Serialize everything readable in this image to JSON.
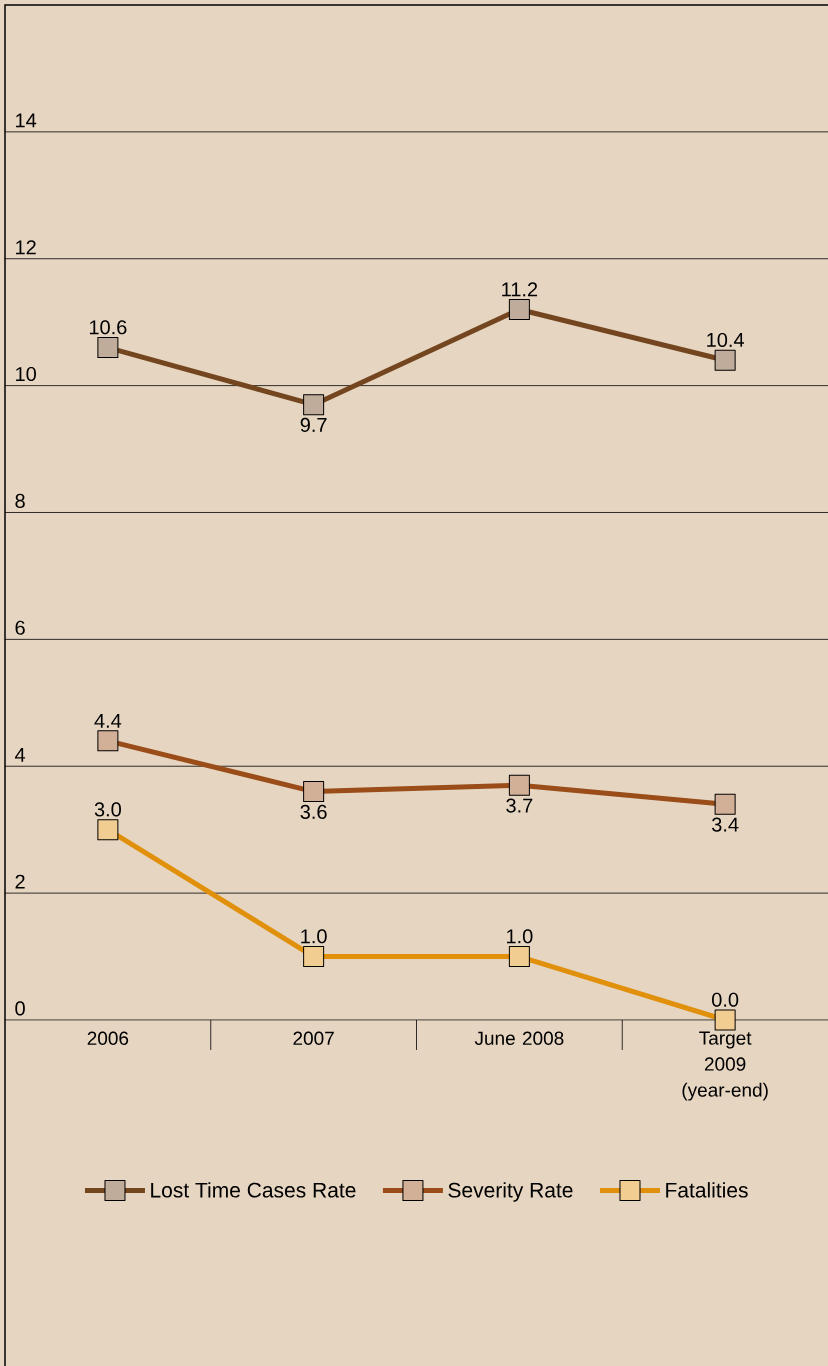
{
  "chart_data": {
    "type": "line",
    "categories": [
      "2006",
      "2007",
      "June 2008",
      "Target 2009 (year-end)"
    ],
    "series": [
      {
        "name": "Lost Time Cases Rate",
        "color": "#74461f",
        "values": [
          10.6,
          9.7,
          11.2,
          10.4
        ],
        "value_labels": [
          "10.6",
          "9.7",
          "11.2",
          "10.4"
        ]
      },
      {
        "name": "Severity Rate",
        "color": "#9a4d18",
        "values": [
          4.4,
          3.6,
          3.7,
          3.4
        ],
        "value_labels": [
          "4.4",
          "3.6",
          "3.7",
          "3.4"
        ]
      },
      {
        "name": "Fatalities",
        "color": "#e0900a",
        "values": [
          3.0,
          1.0,
          1.0,
          0.0
        ],
        "value_labels": [
          "3.0",
          "1.0",
          "1.0",
          "0.0"
        ]
      }
    ],
    "ylim": [
      0,
      16
    ],
    "yticks": [
      0,
      2,
      4,
      6,
      8,
      10,
      12,
      14
    ],
    "grid": "y",
    "legend": "bottom",
    "marker": "square",
    "line_style": "solid"
  }
}
